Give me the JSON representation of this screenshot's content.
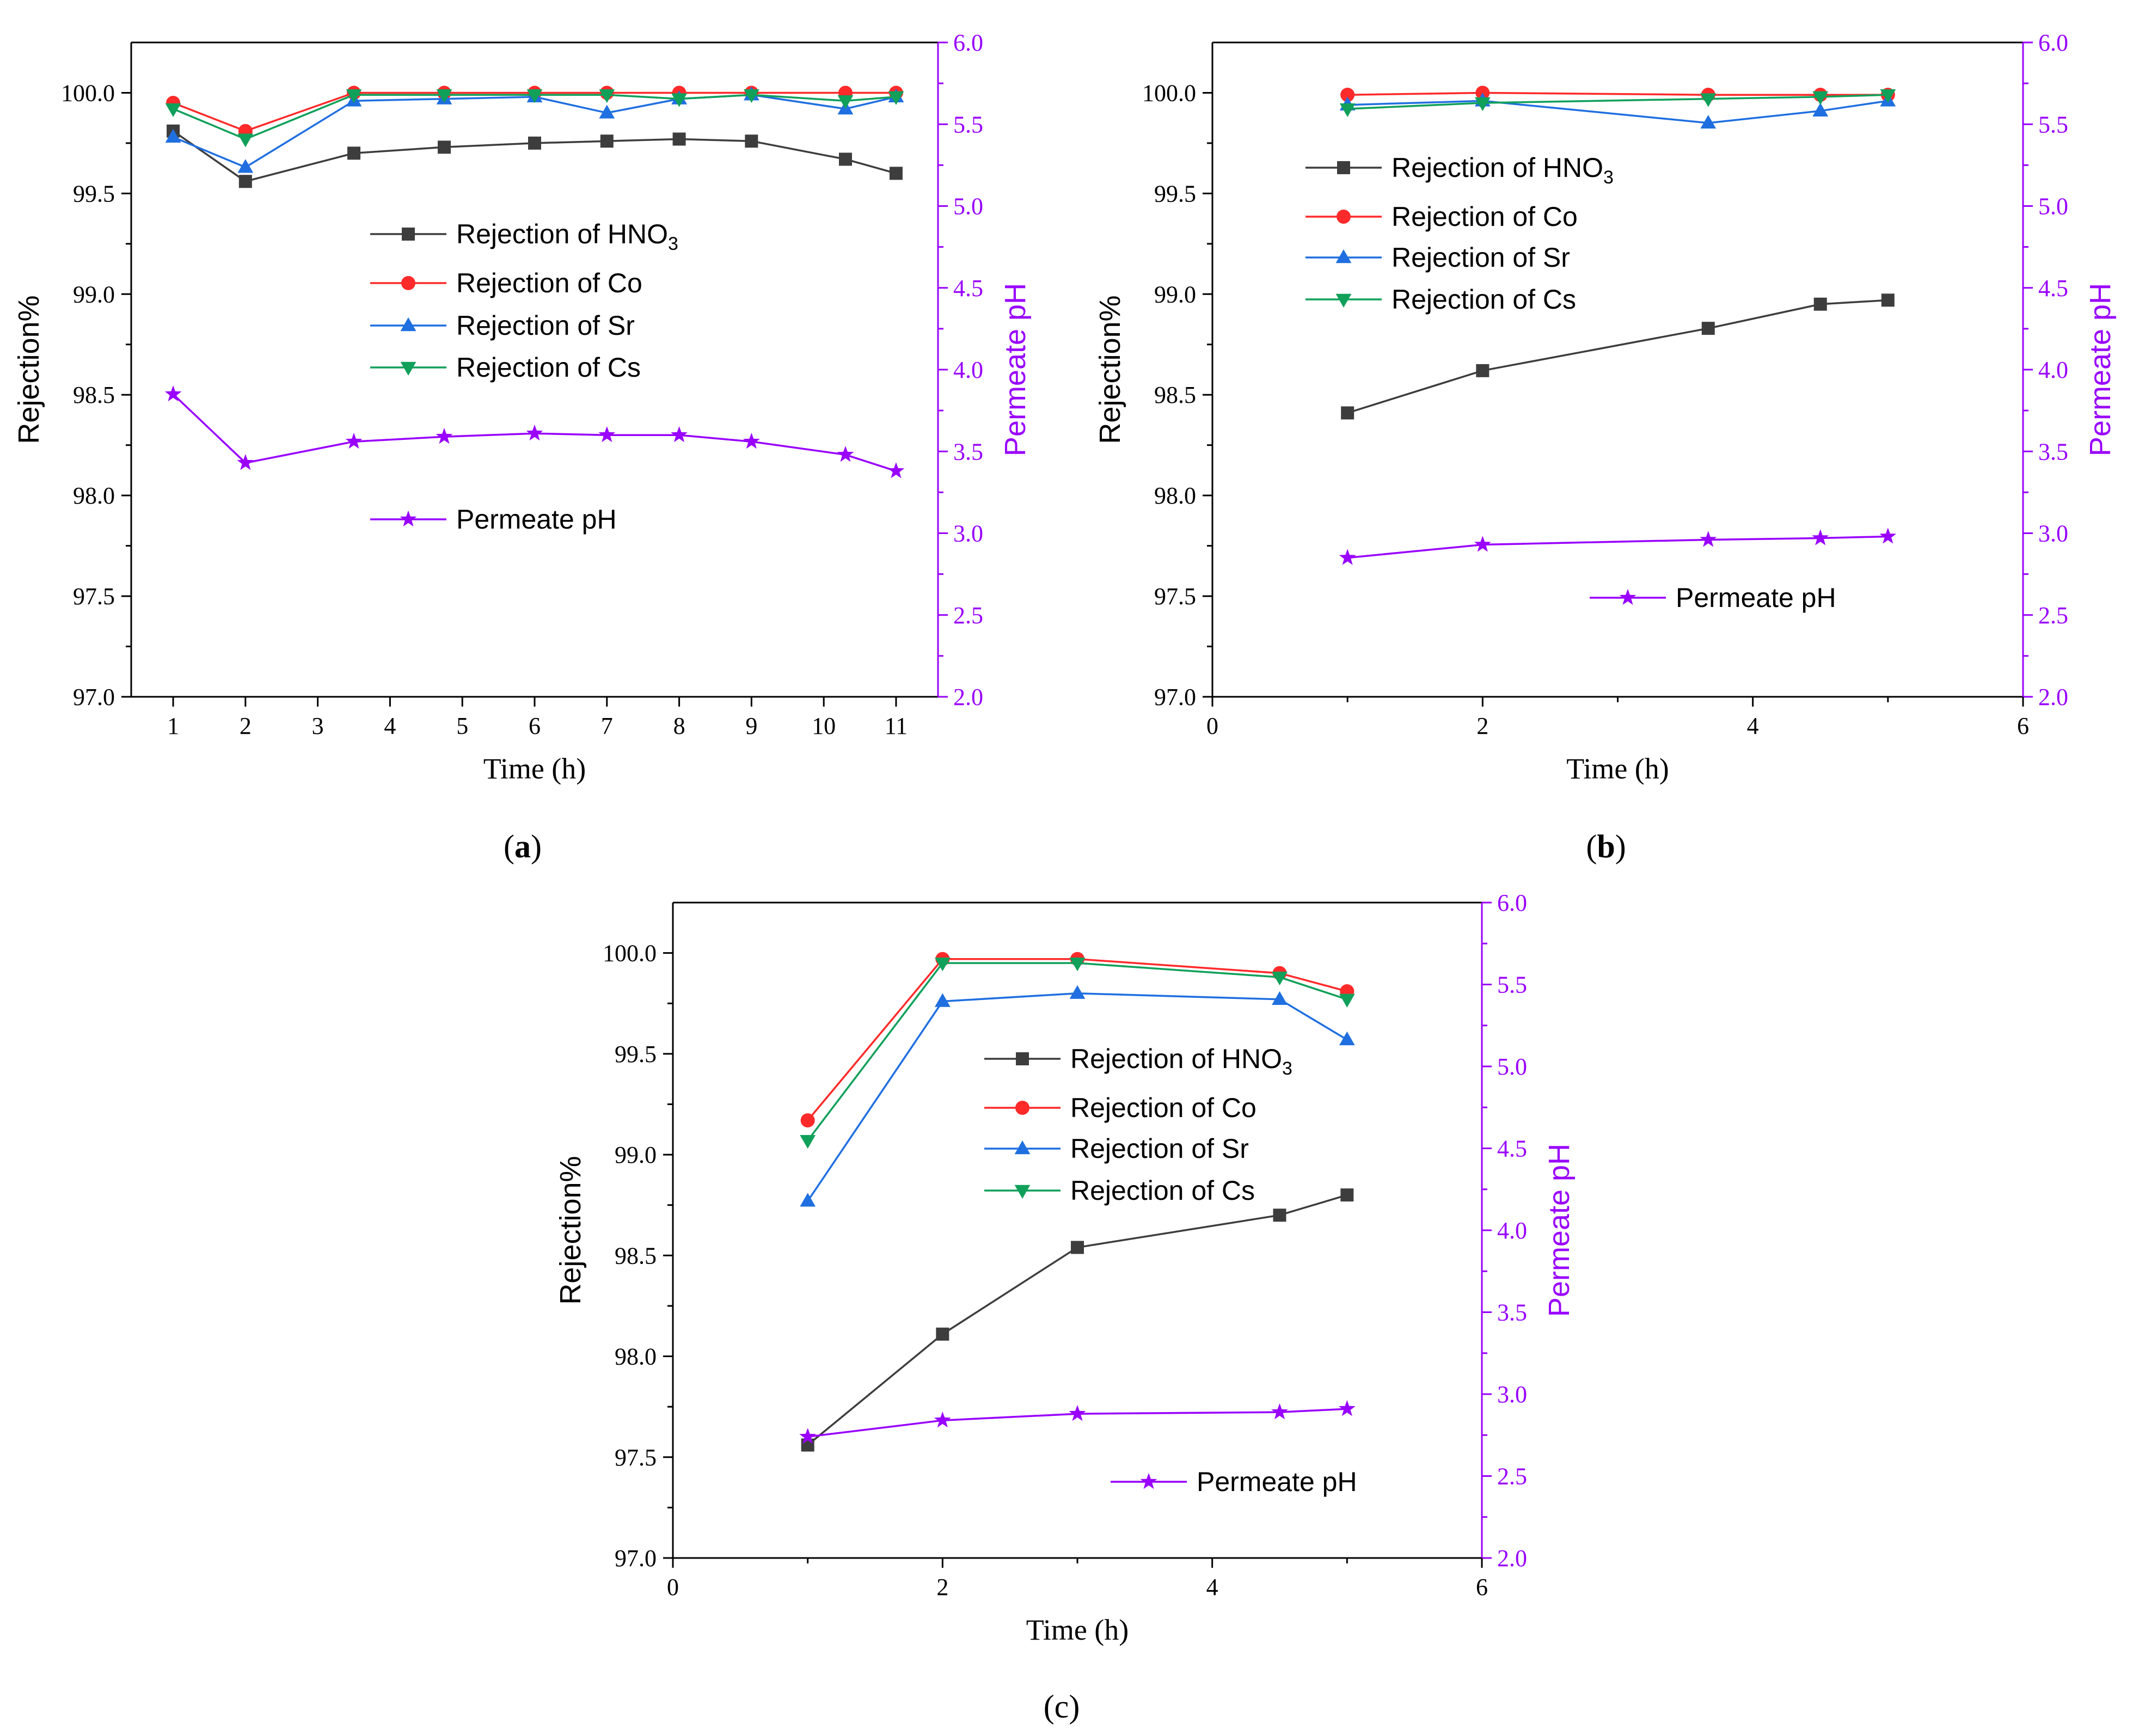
{
  "colors": {
    "hno3": "#3d3d3d",
    "co": "#ff2a2a",
    "sr": "#1f6fe0",
    "cs": "#10a05a",
    "ph": "#9900ff",
    "axis": "#000000"
  },
  "chart_data": [
    {
      "type": "line",
      "caption": "(a)",
      "xlabel": "Time (h)",
      "ylabel_left": "Rejection%",
      "ylabel_right": "Permeate pH",
      "x_scale": "category",
      "x_ticks": [
        "1",
        "2",
        "3",
        "4",
        "5",
        "6",
        "7",
        "8",
        "9",
        "10",
        "11"
      ],
      "ylim_left": [
        97.0,
        100.25
      ],
      "y_ticks_left": [
        "97.0",
        "97.5",
        "98.0",
        "98.5",
        "99.0",
        "99.5",
        "100.0"
      ],
      "ylim_right": [
        2.0,
        6.0
      ],
      "y_ticks_right": [
        "2.0",
        "2.5",
        "3.0",
        "3.5",
        "4.0",
        "4.5",
        "5.0",
        "5.5",
        "6.0"
      ],
      "legend_rejection": [
        "Rejection of HNO3",
        "Rejection of Co",
        "Rejection of Sr",
        "Rejection of Cs"
      ],
      "legend_ph": "Permeate pH",
      "series": [
        {
          "name": "Rejection of HNO3",
          "key": "hno3",
          "marker": "square",
          "axis": "left",
          "x": [
            1,
            2,
            3.5,
            4.75,
            6,
            7,
            8,
            9,
            10.3,
            11
          ],
          "values": [
            99.81,
            99.56,
            99.7,
            99.73,
            99.75,
            99.76,
            99.77,
            99.76,
            99.67,
            99.6
          ]
        },
        {
          "name": "Rejection of Co",
          "key": "co",
          "marker": "circle",
          "axis": "left",
          "x": [
            1,
            2,
            3.5,
            4.75,
            6,
            7,
            8,
            9,
            10.3,
            11
          ],
          "values": [
            99.95,
            99.81,
            100.0,
            100.0,
            100.0,
            100.0,
            100.0,
            100.0,
            100.0,
            100.0
          ]
        },
        {
          "name": "Rejection of Sr",
          "key": "sr",
          "marker": "triangle-up",
          "axis": "left",
          "x": [
            1,
            2,
            3.5,
            4.75,
            6,
            7,
            8,
            9,
            10.3,
            11
          ],
          "values": [
            99.78,
            99.63,
            99.96,
            99.97,
            99.98,
            99.9,
            99.97,
            99.99,
            99.92,
            99.98
          ]
        },
        {
          "name": "Rejection of Cs",
          "key": "cs",
          "marker": "triangle-down",
          "axis": "left",
          "x": [
            1,
            2,
            3.5,
            4.75,
            6,
            7,
            8,
            9,
            10.3,
            11
          ],
          "values": [
            99.92,
            99.77,
            99.99,
            99.99,
            99.99,
            99.99,
            99.97,
            99.99,
            99.96,
            99.98
          ]
        },
        {
          "name": "Permeate pH",
          "key": "ph",
          "marker": "star",
          "axis": "right",
          "x": [
            1,
            2,
            3.5,
            4.75,
            6,
            7,
            8,
            9,
            10.3,
            11
          ],
          "values": [
            3.85,
            3.43,
            3.56,
            3.59,
            3.61,
            3.6,
            3.6,
            3.56,
            3.48,
            3.38
          ]
        }
      ]
    },
    {
      "type": "line",
      "caption": "(b)",
      "xlabel": "Time (h)",
      "ylabel_left": "Rejection%",
      "ylabel_right": "Permeate pH",
      "x_scale": "linear",
      "xlim": [
        0,
        6
      ],
      "x_ticks": [
        "0",
        "2",
        "4",
        "6"
      ],
      "ylim_left": [
        97.0,
        100.25
      ],
      "y_ticks_left": [
        "97.0",
        "97.5",
        "98.0",
        "98.5",
        "99.0",
        "99.5",
        "100.0"
      ],
      "ylim_right": [
        2.0,
        6.0
      ],
      "y_ticks_right": [
        "2.0",
        "2.5",
        "3.0",
        "3.5",
        "4.0",
        "4.5",
        "5.0",
        "5.5",
        "6.0"
      ],
      "legend_rejection": [
        "Rejection of HNO3",
        "Rejection of Co",
        "Rejection of Sr",
        "Rejection of Cs"
      ],
      "legend_ph": "Permeate pH",
      "series": [
        {
          "name": "Rejection of HNO3",
          "key": "hno3",
          "marker": "square",
          "axis": "left",
          "x": [
            1,
            2,
            3.67,
            4.5,
            5
          ],
          "values": [
            98.41,
            98.62,
            98.83,
            98.95,
            98.97
          ]
        },
        {
          "name": "Rejection of Co",
          "key": "co",
          "marker": "circle",
          "axis": "left",
          "x": [
            1,
            2,
            3.67,
            4.5,
            5
          ],
          "values": [
            99.99,
            100.0,
            99.99,
            99.99,
            99.99
          ]
        },
        {
          "name": "Rejection of Sr",
          "key": "sr",
          "marker": "triangle-up",
          "axis": "left",
          "x": [
            1,
            2,
            3.67,
            4.5,
            5
          ],
          "values": [
            99.94,
            99.96,
            99.85,
            99.91,
            99.96
          ]
        },
        {
          "name": "Rejection of Cs",
          "key": "cs",
          "marker": "triangle-down",
          "axis": "left",
          "x": [
            1,
            2,
            3.67,
            4.5,
            5
          ],
          "values": [
            99.92,
            99.95,
            99.97,
            99.98,
            99.99
          ]
        },
        {
          "name": "Permeate pH",
          "key": "ph",
          "marker": "star",
          "axis": "right",
          "x": [
            1,
            2,
            3.67,
            4.5,
            5
          ],
          "values": [
            2.85,
            2.93,
            2.96,
            2.97,
            2.98
          ]
        }
      ]
    },
    {
      "type": "line",
      "caption": "(c)",
      "xlabel": "Time (h)",
      "ylabel_left": "Rejection%",
      "ylabel_right": "Permeate pH",
      "x_scale": "linear",
      "xlim": [
        0,
        6
      ],
      "x_ticks": [
        "0",
        "2",
        "4",
        "6"
      ],
      "ylim_left": [
        97.0,
        100.25
      ],
      "y_ticks_left": [
        "97.0",
        "97.5",
        "98.0",
        "98.5",
        "99.0",
        "99.5",
        "100.0"
      ],
      "ylim_right": [
        2.0,
        6.0
      ],
      "y_ticks_right": [
        "2.0",
        "2.5",
        "3.0",
        "3.5",
        "4.0",
        "4.5",
        "5.0",
        "5.5",
        "6.0"
      ],
      "legend_rejection": [
        "Rejection of HNO3",
        "Rejection of Co",
        "Rejection of Sr",
        "Rejection of Cs"
      ],
      "legend_ph": "Permeate pH",
      "series": [
        {
          "name": "Rejection of HNO3",
          "key": "hno3",
          "marker": "square",
          "axis": "left",
          "x": [
            1,
            2,
            3,
            4.5,
            5
          ],
          "values": [
            97.56,
            98.11,
            98.54,
            98.7,
            98.8
          ]
        },
        {
          "name": "Rejection of Co",
          "key": "co",
          "marker": "circle",
          "axis": "left",
          "x": [
            1,
            2,
            3,
            4.5,
            5
          ],
          "values": [
            99.17,
            99.97,
            99.97,
            99.9,
            99.81
          ]
        },
        {
          "name": "Rejection of Sr",
          "key": "sr",
          "marker": "triangle-up",
          "axis": "left",
          "x": [
            1,
            2,
            3,
            4.5,
            5
          ],
          "values": [
            98.77,
            99.76,
            99.8,
            99.77,
            99.57
          ]
        },
        {
          "name": "Rejection of Cs",
          "key": "cs",
          "marker": "triangle-down",
          "axis": "left",
          "x": [
            1,
            2,
            3,
            4.5,
            5
          ],
          "values": [
            99.07,
            99.95,
            99.95,
            99.88,
            99.77
          ]
        },
        {
          "name": "Permeate pH",
          "key": "ph",
          "marker": "star",
          "axis": "right",
          "x": [
            1,
            2,
            3,
            4.5,
            5
          ],
          "values": [
            2.74,
            2.84,
            2.88,
            2.89,
            2.91
          ]
        }
      ]
    }
  ]
}
